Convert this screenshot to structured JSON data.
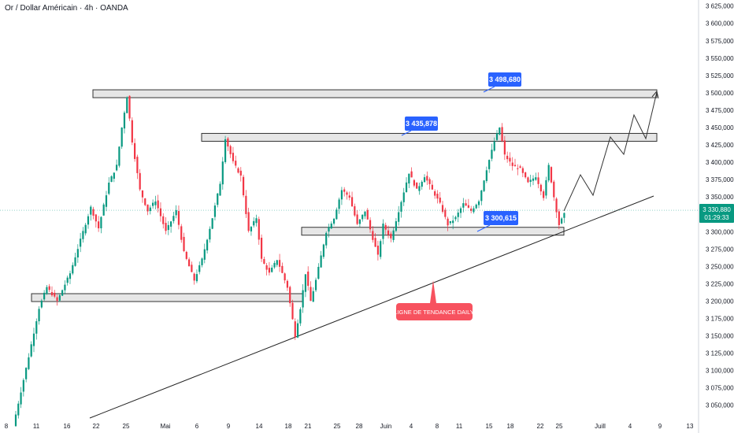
{
  "header": {
    "title": "Or / Dollar Américain · 4h · OANDA"
  },
  "colors": {
    "up": "#089981",
    "down": "#f23645",
    "callout": "#2962ff",
    "annotation": "#f7525f",
    "zone_fill": "#e6e6e6",
    "zone_stroke": "#333333"
  },
  "price_axis": {
    "ticks": [
      "3 625,000",
      "3 600,000",
      "3 575,000",
      "3 550,000",
      "3 525,000",
      "3 500,000",
      "3 475,000",
      "3 450,000",
      "3 425,000",
      "3 400,000",
      "3 375,000",
      "3 350,000",
      "3 300,000",
      "3 275,000",
      "3 250,000",
      "3 225,000",
      "3 200,000",
      "3 175,000",
      "3 150,000",
      "3 125,000",
      "3 100,000",
      "3 075,000",
      "3 050,000"
    ],
    "current_price": "3 330,880",
    "countdown": "01:29:33"
  },
  "time_axis": {
    "ticks": [
      "8",
      "11",
      "16",
      "22",
      "25",
      "Mai",
      "6",
      "9",
      "14",
      "18",
      "21",
      "25",
      "28",
      "Juin",
      "4",
      "8",
      "11",
      "15",
      "18",
      "22",
      "25",
      "Juill",
      "4",
      "9",
      "13"
    ]
  },
  "callouts": {
    "high": "3 498,680",
    "mid": "3 435,878",
    "low": "3 300,615"
  },
  "annotation": {
    "trendline_label": "LIGNE DE TENDANCE DAILY"
  },
  "chart_data": {
    "type": "candlestick",
    "title": "Or / Dollar Américain · 4h · OANDA",
    "ylim": [
      3030,
      3630
    ],
    "key_levels": [
      3498.68,
      3435.878,
      3300.615,
      3205
    ],
    "current_price": 3330.88,
    "path": [
      [
        0,
        3020
      ],
      [
        6,
        3120
      ],
      [
        10,
        3190
      ],
      [
        13,
        3220
      ],
      [
        17,
        3200
      ],
      [
        22,
        3240
      ],
      [
        27,
        3300
      ],
      [
        30,
        3335
      ],
      [
        33,
        3305
      ],
      [
        37,
        3370
      ],
      [
        40,
        3395
      ],
      [
        42,
        3450
      ],
      [
        44,
        3495
      ],
      [
        46,
        3430
      ],
      [
        49,
        3360
      ],
      [
        52,
        3330
      ],
      [
        55,
        3345
      ],
      [
        59,
        3300
      ],
      [
        63,
        3330
      ],
      [
        66,
        3270
      ],
      [
        70,
        3230
      ],
      [
        73,
        3260
      ],
      [
        77,
        3320
      ],
      [
        80,
        3370
      ],
      [
        82,
        3435
      ],
      [
        85,
        3400
      ],
      [
        88,
        3380
      ],
      [
        91,
        3300
      ],
      [
        94,
        3320
      ],
      [
        96,
        3260
      ],
      [
        99,
        3240
      ],
      [
        102,
        3260
      ],
      [
        106,
        3220
      ],
      [
        109,
        3150
      ],
      [
        111,
        3190
      ],
      [
        113,
        3240
      ],
      [
        115,
        3200
      ],
      [
        117,
        3230
      ],
      [
        121,
        3300
      ],
      [
        124,
        3320
      ],
      [
        127,
        3360
      ],
      [
        130,
        3350
      ],
      [
        133,
        3310
      ],
      [
        136,
        3330
      ],
      [
        139,
        3290
      ],
      [
        141,
        3265
      ],
      [
        143,
        3310
      ],
      [
        146,
        3290
      ],
      [
        149,
        3330
      ],
      [
        153,
        3385
      ],
      [
        156,
        3360
      ],
      [
        159,
        3380
      ],
      [
        162,
        3360
      ],
      [
        165,
        3340
      ],
      [
        168,
        3310
      ],
      [
        171,
        3320
      ],
      [
        174,
        3340
      ],
      [
        177,
        3330
      ],
      [
        180,
        3345
      ],
      [
        183,
        3390
      ],
      [
        186,
        3430
      ],
      [
        188,
        3450
      ],
      [
        190,
        3410
      ],
      [
        193,
        3395
      ],
      [
        196,
        3390
      ],
      [
        199,
        3370
      ],
      [
        202,
        3380
      ],
      [
        205,
        3350
      ],
      [
        207,
        3395
      ],
      [
        209,
        3350
      ],
      [
        211,
        3310
      ],
      [
        213,
        3325
      ]
    ]
  }
}
